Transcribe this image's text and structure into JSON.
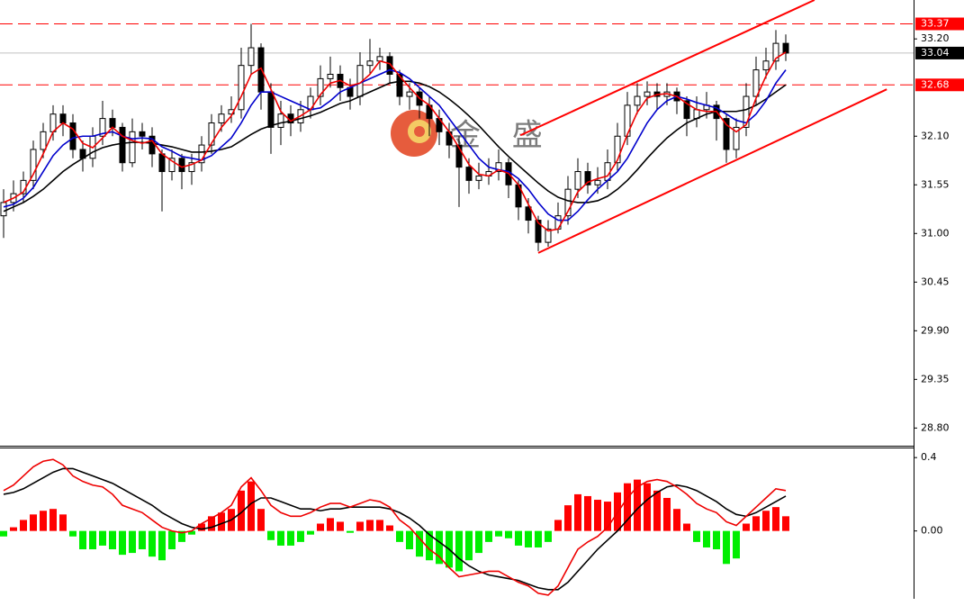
{
  "chart_data": [
    {
      "type": "candlestick",
      "watermark": "金 盛",
      "ylim": [
        28.6,
        33.64
      ],
      "yticks": [
        {
          "value": 33.2,
          "label": "33.20"
        },
        {
          "value": 32.1,
          "label": "32.10"
        },
        {
          "value": 31.55,
          "label": "31.55"
        },
        {
          "value": 31.0,
          "label": "31.00"
        },
        {
          "value": 30.45,
          "label": "30.45"
        },
        {
          "value": 29.9,
          "label": "29.90"
        },
        {
          "value": 29.35,
          "label": "29.35"
        },
        {
          "value": 28.8,
          "label": "28.80"
        }
      ],
      "up_color": "#ffffff",
      "down_color": "#000000",
      "outline_color": "#000000",
      "open": [
        31.2,
        31.35,
        31.45,
        31.6,
        31.95,
        32.15,
        32.35,
        32.25,
        31.95,
        31.85,
        32.1,
        32.3,
        32.2,
        31.8,
        32.15,
        32.1,
        31.9,
        31.7,
        31.85,
        31.7,
        31.8,
        32.0,
        32.25,
        32.35,
        32.4,
        32.9,
        33.1,
        32.6,
        32.2,
        32.35,
        32.25,
        32.4,
        32.55,
        32.75,
        32.8,
        32.65,
        32.55,
        32.9,
        32.95,
        33.0,
        32.8,
        32.55,
        32.6,
        32.45,
        32.3,
        32.15,
        32.0,
        31.75,
        31.6,
        31.65,
        31.7,
        31.8,
        31.55,
        31.3,
        31.15,
        30.9,
        31.05,
        31.2,
        31.5,
        31.7,
        31.55,
        31.6,
        31.8,
        32.1,
        32.45,
        32.55,
        32.6,
        32.55,
        32.6,
        32.5,
        32.3,
        32.4,
        32.45,
        32.3,
        31.95,
        32.2,
        32.55,
        32.85,
        32.95,
        33.15
      ],
      "high": [
        31.5,
        31.6,
        31.7,
        32.05,
        32.25,
        32.45,
        32.45,
        32.35,
        32.05,
        32.2,
        32.5,
        32.4,
        32.25,
        32.3,
        32.25,
        32.2,
        31.95,
        31.95,
        31.9,
        31.9,
        32.1,
        32.35,
        32.45,
        32.55,
        33.1,
        33.37,
        33.15,
        32.7,
        32.5,
        32.45,
        32.5,
        32.65,
        32.9,
        33.0,
        32.9,
        32.75,
        33.05,
        33.2,
        33.1,
        33.05,
        32.85,
        32.7,
        32.65,
        32.55,
        32.4,
        32.25,
        32.1,
        31.85,
        31.8,
        31.85,
        31.95,
        31.85,
        31.6,
        31.4,
        31.2,
        31.15,
        31.35,
        31.65,
        31.85,
        31.8,
        31.75,
        31.95,
        32.25,
        32.6,
        32.7,
        32.72,
        32.7,
        32.7,
        32.65,
        32.55,
        32.55,
        32.6,
        32.5,
        32.35,
        32.3,
        32.7,
        33.0,
        33.1,
        33.3,
        33.25
      ],
      "low": [
        30.95,
        31.25,
        31.35,
        31.5,
        31.85,
        32.05,
        32.1,
        31.85,
        31.7,
        31.75,
        32.0,
        32.1,
        31.7,
        31.75,
        31.95,
        31.75,
        31.25,
        31.6,
        31.5,
        31.55,
        31.7,
        31.9,
        32.15,
        32.25,
        32.3,
        32.8,
        32.4,
        31.9,
        32.0,
        32.1,
        32.15,
        32.3,
        32.45,
        32.65,
        32.5,
        32.4,
        32.45,
        32.8,
        32.85,
        32.7,
        32.45,
        32.4,
        32.3,
        32.1,
        32.0,
        31.85,
        31.3,
        31.45,
        31.5,
        31.55,
        31.6,
        31.4,
        31.15,
        31.0,
        30.8,
        30.85,
        31.0,
        31.1,
        31.4,
        31.45,
        31.45,
        31.5,
        31.7,
        32.0,
        32.35,
        32.45,
        32.4,
        32.45,
        32.35,
        32.1,
        32.2,
        32.3,
        32.05,
        31.8,
        31.85,
        32.1,
        32.45,
        32.75,
        32.85,
        32.95
      ],
      "close": [
        31.35,
        31.45,
        31.6,
        31.95,
        32.15,
        32.35,
        32.25,
        31.95,
        31.85,
        32.1,
        32.3,
        32.2,
        31.8,
        32.15,
        32.1,
        31.9,
        31.7,
        31.85,
        31.7,
        31.8,
        32.0,
        32.25,
        32.35,
        32.4,
        32.9,
        33.1,
        32.6,
        32.2,
        32.35,
        32.25,
        32.4,
        32.55,
        32.75,
        32.8,
        32.65,
        32.55,
        32.9,
        32.95,
        33.0,
        32.8,
        32.55,
        32.6,
        32.45,
        32.3,
        32.15,
        32.0,
        31.75,
        31.6,
        31.65,
        31.7,
        31.8,
        31.55,
        31.3,
        31.15,
        30.9,
        31.05,
        31.2,
        31.5,
        31.7,
        31.55,
        31.6,
        31.8,
        32.1,
        32.45,
        32.55,
        32.6,
        32.55,
        32.6,
        32.5,
        32.3,
        32.4,
        32.45,
        32.3,
        31.95,
        32.2,
        32.55,
        32.85,
        32.95,
        33.15,
        33.04
      ],
      "series": [
        {
          "color": "#000000",
          "values": [
            31.25,
            31.3,
            31.35,
            31.42,
            31.5,
            31.6,
            31.7,
            31.78,
            31.85,
            31.92,
            31.97,
            32.0,
            32.02,
            32.03,
            32.03,
            32.02,
            32.0,
            31.98,
            31.95,
            31.92,
            31.92,
            31.93,
            31.95,
            31.98,
            32.05,
            32.12,
            32.18,
            32.22,
            32.25,
            32.27,
            32.3,
            32.33,
            32.37,
            32.42,
            32.47,
            32.5,
            32.55,
            32.6,
            32.65,
            32.7,
            32.72,
            32.72,
            32.7,
            32.66,
            32.6,
            32.52,
            32.43,
            32.33,
            32.22,
            32.1,
            31.98,
            31.87,
            31.77,
            31.67,
            31.57,
            31.48,
            31.41,
            31.37,
            31.35,
            31.35,
            31.37,
            31.42,
            31.5,
            31.6,
            31.72,
            31.85,
            31.97,
            32.08,
            32.17,
            32.25,
            32.3,
            32.35,
            32.38,
            32.38,
            32.38,
            32.4,
            32.45,
            32.52,
            32.6,
            32.68
          ]
        },
        {
          "color": "#0000cc",
          "values": [
            31.3,
            31.33,
            31.4,
            31.52,
            31.7,
            31.88,
            32.0,
            32.08,
            32.1,
            32.1,
            32.13,
            32.15,
            32.1,
            32.07,
            32.08,
            32.07,
            31.98,
            31.93,
            31.87,
            31.85,
            31.83,
            31.88,
            31.98,
            32.08,
            32.25,
            32.45,
            32.6,
            32.6,
            32.55,
            32.5,
            32.45,
            32.4,
            32.42,
            32.5,
            32.6,
            32.65,
            32.7,
            32.75,
            32.8,
            32.85,
            32.82,
            32.75,
            32.65,
            32.55,
            32.45,
            32.3,
            32.15,
            32.0,
            31.85,
            31.75,
            31.72,
            31.7,
            31.62,
            31.5,
            31.35,
            31.22,
            31.15,
            31.15,
            31.25,
            31.38,
            31.5,
            31.6,
            31.7,
            31.85,
            32.05,
            32.25,
            32.4,
            32.5,
            32.55,
            32.52,
            32.48,
            32.45,
            32.42,
            32.35,
            32.28,
            32.25,
            32.35,
            32.5,
            32.7,
            32.85
          ]
        },
        {
          "color": "#ee0000",
          "values": [
            31.35,
            31.4,
            31.47,
            31.67,
            31.9,
            32.15,
            32.25,
            32.18,
            32.02,
            31.97,
            32.08,
            32.2,
            32.1,
            32.05,
            32.02,
            32.05,
            31.9,
            31.82,
            31.75,
            31.78,
            31.83,
            32.02,
            32.2,
            32.33,
            32.55,
            32.8,
            32.87,
            32.63,
            32.38,
            32.27,
            32.33,
            32.4,
            32.57,
            32.7,
            32.73,
            32.67,
            32.7,
            32.8,
            32.95,
            32.92,
            32.78,
            32.65,
            32.53,
            32.45,
            32.3,
            32.15,
            31.97,
            31.78,
            31.67,
            31.65,
            31.72,
            31.68,
            31.55,
            31.33,
            31.12,
            31.03,
            31.05,
            31.25,
            31.47,
            31.58,
            31.62,
            31.65,
            31.83,
            32.12,
            32.37,
            32.53,
            32.57,
            32.58,
            32.55,
            32.47,
            32.4,
            32.38,
            32.38,
            32.23,
            32.15,
            32.23,
            32.53,
            32.78,
            32.98,
            33.05
          ]
        }
      ],
      "price_lines": [
        {
          "value": 33.37,
          "color": "#ff0000",
          "dashed": true,
          "box": "#ff0000"
        },
        {
          "value": 33.04,
          "color": "#c0c0c0",
          "dashed": false,
          "box": "#000000"
        },
        {
          "value": 32.68,
          "color": "#ff0000",
          "dashed": true,
          "box": "#ff0000"
        }
      ],
      "trendlines": [
        {
          "color": "#ff0000",
          "x": [
            52.2,
            81.9
          ],
          "y": [
            32.11,
            33.64
          ]
        },
        {
          "color": "#ff0000",
          "x": [
            54,
            89.2
          ],
          "y": [
            30.78,
            32.63
          ]
        }
      ]
    },
    {
      "type": "macd",
      "ylim": [
        -0.37,
        0.45
      ],
      "yticks": [
        0.4,
        {
          "value": 0,
          "label": "0.00"
        }
      ],
      "positive_color": "#ff0000",
      "negative_color": "#00ee00",
      "histogram": {
        "values": [
          -0.03,
          0.02,
          0.06,
          0.09,
          0.11,
          0.12,
          0.09,
          -0.03,
          -0.1,
          -0.1,
          -0.08,
          -0.1,
          -0.13,
          -0.12,
          -0.1,
          -0.14,
          -0.16,
          -0.1,
          -0.06,
          -0.02,
          0.04,
          0.08,
          0.1,
          0.12,
          0.22,
          0.27,
          0.12,
          -0.05,
          -0.08,
          -0.08,
          -0.06,
          -0.02,
          0.04,
          0.07,
          0.05,
          -0.01,
          0.05,
          0.06,
          0.06,
          0.03,
          -0.06,
          -0.1,
          -0.14,
          -0.16,
          -0.18,
          -0.2,
          -0.22,
          -0.16,
          -0.12,
          -0.06,
          -0.03,
          -0.04,
          -0.08,
          -0.09,
          -0.09,
          -0.06,
          0.06,
          0.14,
          0.2,
          0.19,
          0.17,
          0.16,
          0.21,
          0.26,
          0.28,
          0.26,
          0.22,
          0.18,
          0.12,
          0.04,
          -0.06,
          -0.09,
          -0.1,
          -0.18,
          -0.15,
          0.04,
          0.08,
          0.11,
          0.13,
          0.08
        ]
      },
      "series": [
        {
          "color": "#000000",
          "values": [
            0.2,
            0.21,
            0.23,
            0.26,
            0.29,
            0.32,
            0.34,
            0.34,
            0.32,
            0.3,
            0.28,
            0.26,
            0.23,
            0.2,
            0.17,
            0.14,
            0.1,
            0.07,
            0.04,
            0.02,
            0.01,
            0.02,
            0.04,
            0.06,
            0.1,
            0.15,
            0.18,
            0.18,
            0.16,
            0.14,
            0.12,
            0.12,
            0.11,
            0.12,
            0.12,
            0.13,
            0.13,
            0.13,
            0.13,
            0.12,
            0.1,
            0.07,
            0.03,
            -0.02,
            -0.06,
            -0.1,
            -0.15,
            -0.19,
            -0.22,
            -0.24,
            -0.25,
            -0.26,
            -0.27,
            -0.29,
            -0.31,
            -0.32,
            -0.32,
            -0.28,
            -0.22,
            -0.16,
            -0.1,
            -0.05,
            0.0,
            0.06,
            0.12,
            0.17,
            0.21,
            0.24,
            0.25,
            0.24,
            0.22,
            0.19,
            0.16,
            0.12,
            0.09,
            0.08,
            0.1,
            0.13,
            0.16,
            0.19
          ]
        },
        {
          "color": "#ee0000",
          "values": [
            0.22,
            0.25,
            0.3,
            0.35,
            0.38,
            0.39,
            0.36,
            0.3,
            0.27,
            0.25,
            0.24,
            0.2,
            0.14,
            0.12,
            0.1,
            0.06,
            0.02,
            0.0,
            -0.01,
            0.0,
            0.04,
            0.07,
            0.1,
            0.14,
            0.24,
            0.29,
            0.22,
            0.14,
            0.1,
            0.08,
            0.08,
            0.1,
            0.13,
            0.15,
            0.15,
            0.13,
            0.15,
            0.17,
            0.16,
            0.13,
            0.06,
            0.02,
            -0.04,
            -0.1,
            -0.14,
            -0.2,
            -0.25,
            -0.24,
            -0.23,
            -0.22,
            -0.22,
            -0.25,
            -0.28,
            -0.3,
            -0.34,
            -0.35,
            -0.3,
            -0.2,
            -0.1,
            -0.06,
            -0.03,
            0.02,
            0.1,
            0.18,
            0.24,
            0.27,
            0.28,
            0.27,
            0.24,
            0.2,
            0.15,
            0.12,
            0.1,
            0.05,
            0.03,
            0.08,
            0.13,
            0.18,
            0.23,
            0.22
          ]
        }
      ]
    }
  ]
}
